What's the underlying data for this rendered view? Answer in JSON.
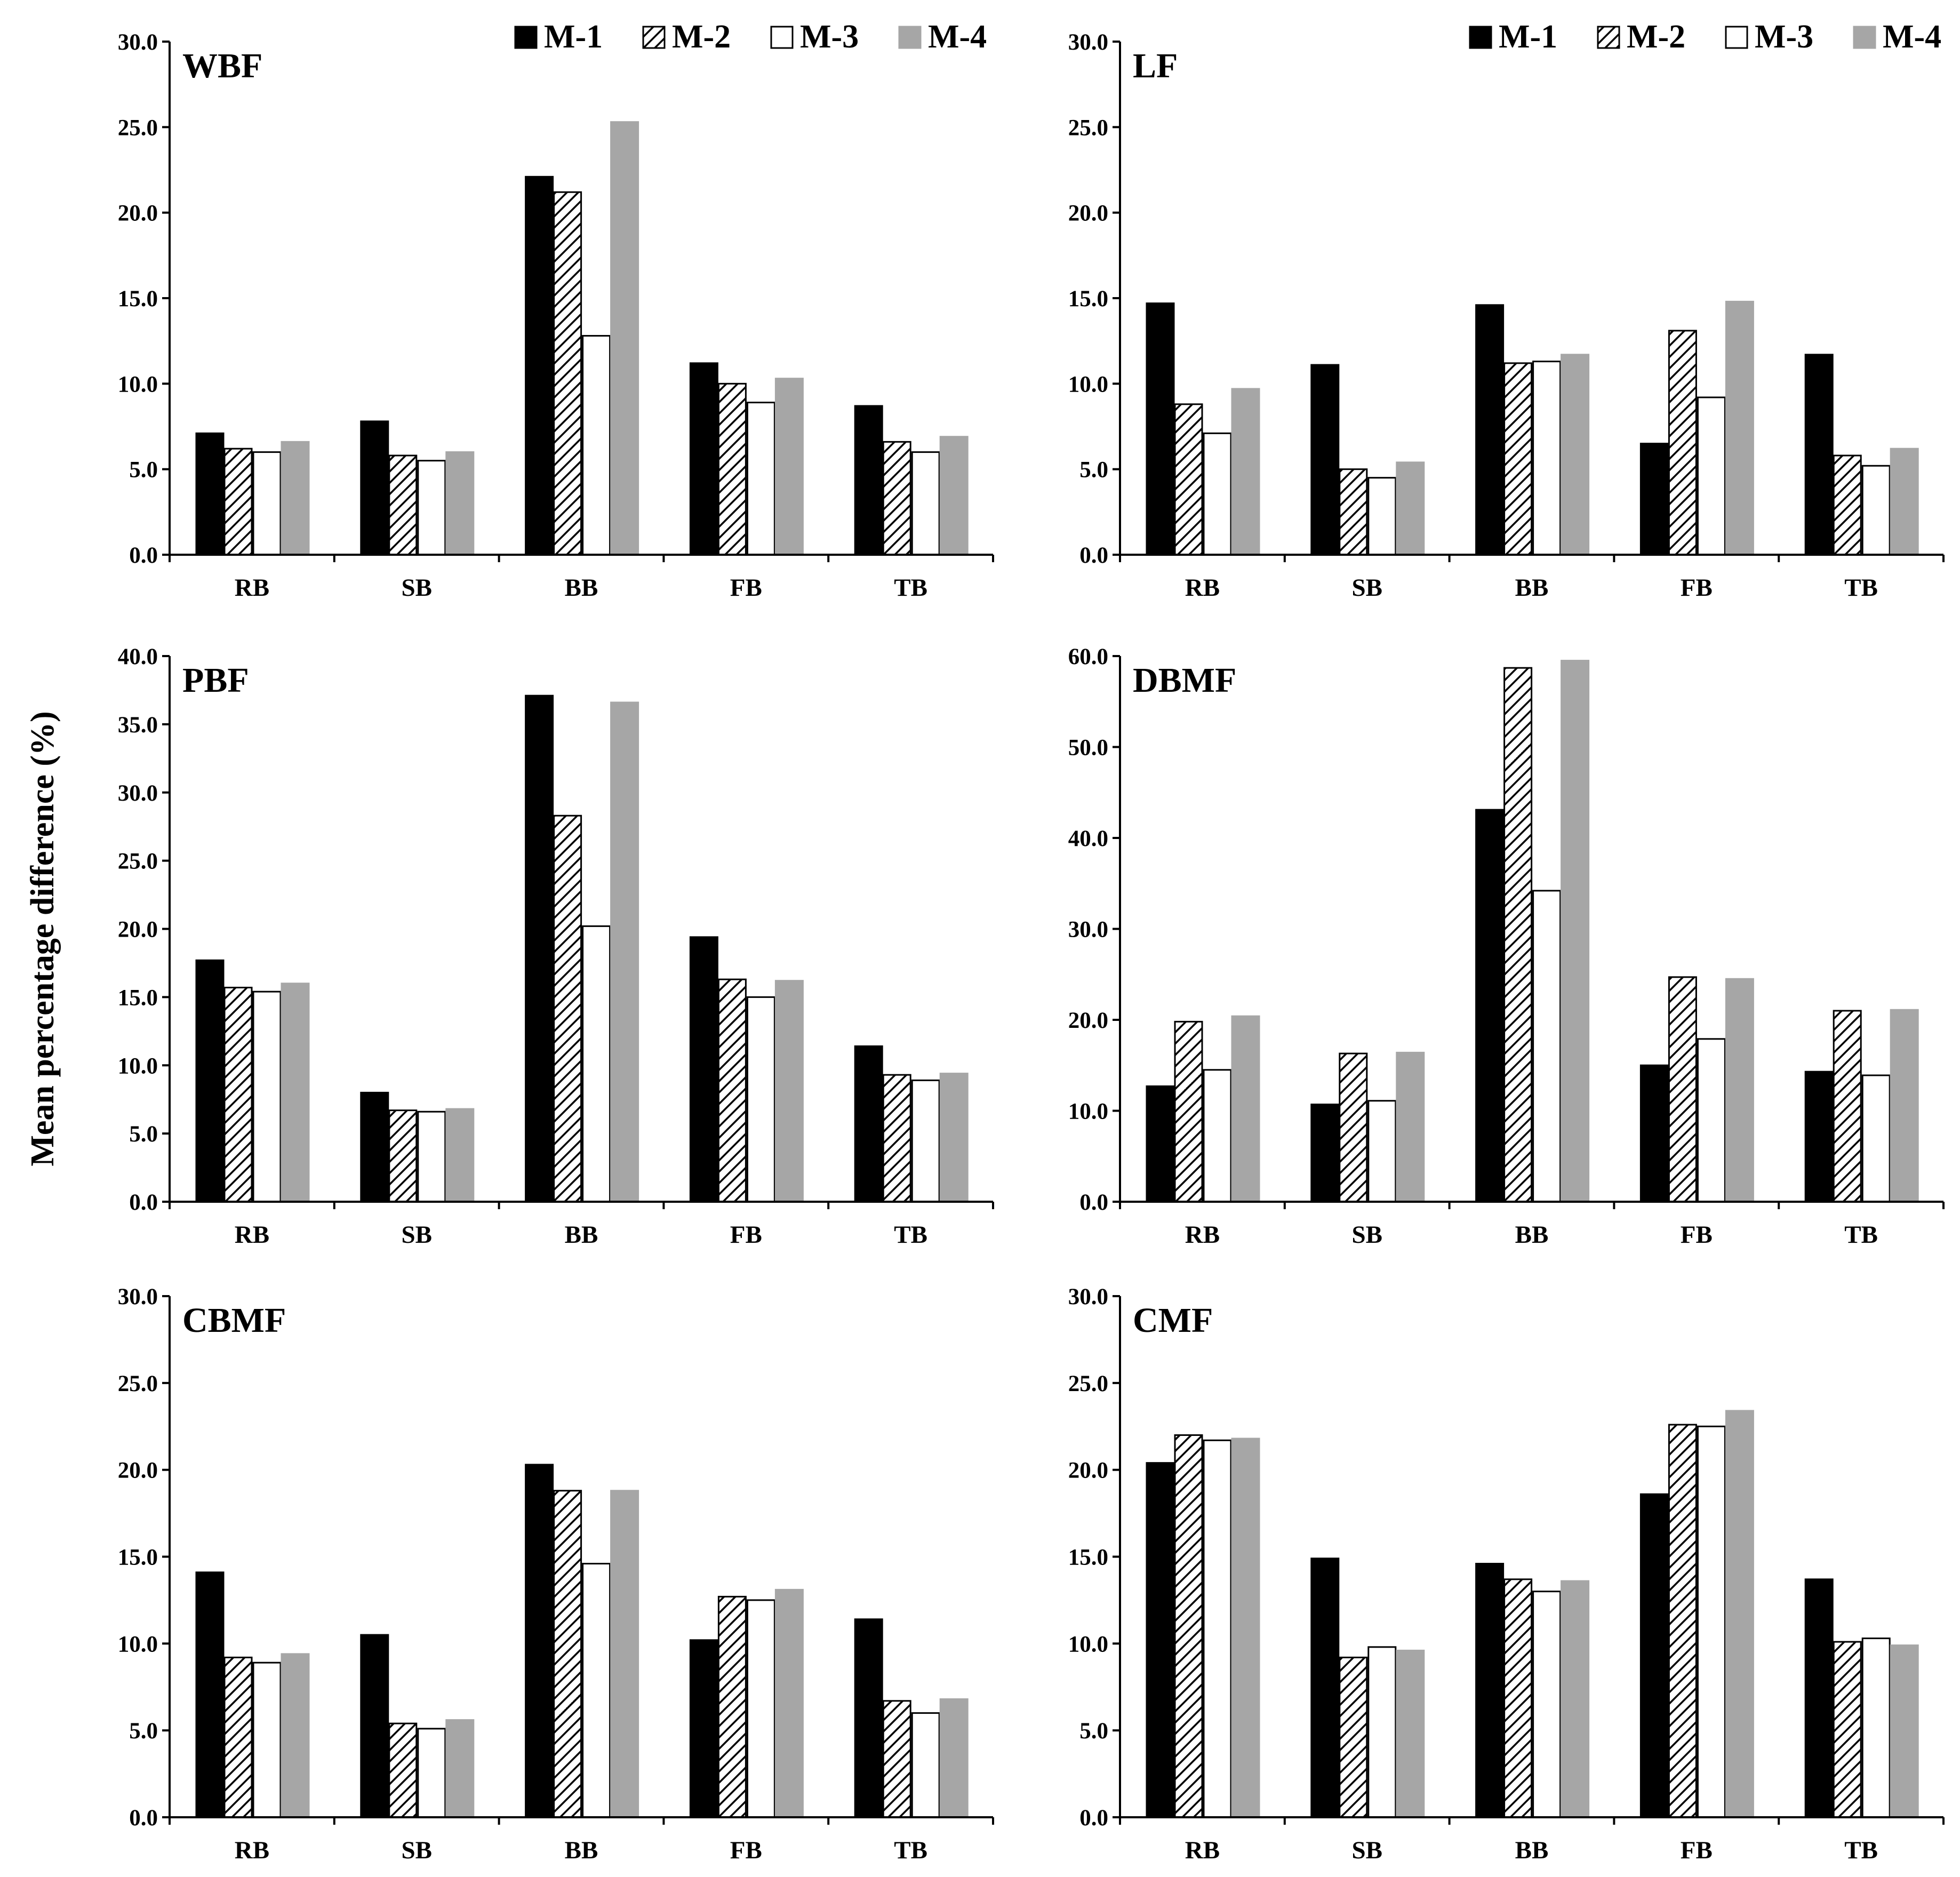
{
  "figure": {
    "ylabel": "Mean percentage difference (%)"
  },
  "colors": {
    "M-1": "#000000",
    "M-2": "#ffffff",
    "M-2_hatch": "#000000",
    "M-3": "#ffffff",
    "M-4": "#a6a6a6"
  },
  "chart_data": [
    {
      "type": "bar",
      "title": "WBF",
      "categories": [
        "RB",
        "SB",
        "BB",
        "FB",
        "TB"
      ],
      "ylim": [
        0,
        30
      ],
      "ytick_step": 5,
      "ytick_labels": [
        "0.0",
        "5.0",
        "10.0",
        "15.0",
        "20.0",
        "25.0",
        "30.0"
      ],
      "legend": [
        "M-1",
        "M-2",
        "M-3",
        "M-4"
      ],
      "legend_position": "top-right",
      "series": [
        {
          "name": "M-1",
          "values": [
            7.1,
            7.8,
            22.1,
            11.2,
            8.7
          ]
        },
        {
          "name": "M-2",
          "values": [
            6.2,
            5.8,
            21.2,
            10.0,
            6.6
          ]
        },
        {
          "name": "M-3",
          "values": [
            6.0,
            5.5,
            12.8,
            8.9,
            6.0
          ]
        },
        {
          "name": "M-4",
          "values": [
            6.6,
            6.0,
            25.3,
            10.3,
            6.9
          ]
        }
      ]
    },
    {
      "type": "bar",
      "title": "LF",
      "categories": [
        "RB",
        "SB",
        "BB",
        "FB",
        "TB"
      ],
      "ylim": [
        0,
        30
      ],
      "ytick_step": 5,
      "ytick_labels": [
        "0.0",
        "5.0",
        "10.0",
        "15.0",
        "20.0",
        "25.0",
        "30.0"
      ],
      "legend": [
        "M-1",
        "M-2",
        "M-3",
        "M-4"
      ],
      "legend_position": "top-right",
      "series": [
        {
          "name": "M-1",
          "values": [
            14.7,
            11.1,
            14.6,
            6.5,
            11.7
          ]
        },
        {
          "name": "M-2",
          "values": [
            8.8,
            5.0,
            11.2,
            13.1,
            5.8
          ]
        },
        {
          "name": "M-3",
          "values": [
            7.1,
            4.5,
            11.3,
            9.2,
            5.2
          ]
        },
        {
          "name": "M-4",
          "values": [
            9.7,
            5.4,
            11.7,
            14.8,
            6.2
          ]
        }
      ]
    },
    {
      "type": "bar",
      "title": "PBF",
      "categories": [
        "RB",
        "SB",
        "BB",
        "FB",
        "TB"
      ],
      "ylim": [
        0,
        40
      ],
      "ytick_step": 5,
      "ytick_labels": [
        "0.0",
        "5.0",
        "10.0",
        "15.0",
        "20.0",
        "25.0",
        "30.0",
        "35.0",
        "40.0"
      ],
      "series": [
        {
          "name": "M-1",
          "values": [
            17.7,
            8.0,
            37.1,
            19.4,
            11.4
          ]
        },
        {
          "name": "M-2",
          "values": [
            15.7,
            6.7,
            28.3,
            16.3,
            9.3
          ]
        },
        {
          "name": "M-3",
          "values": [
            15.4,
            6.6,
            20.2,
            15.0,
            8.9
          ]
        },
        {
          "name": "M-4",
          "values": [
            16.0,
            6.8,
            36.6,
            16.2,
            9.4
          ]
        }
      ]
    },
    {
      "type": "bar",
      "title": "DBMF",
      "categories": [
        "RB",
        "SB",
        "BB",
        "FB",
        "TB"
      ],
      "ylim": [
        0,
        60
      ],
      "ytick_step": 10,
      "ytick_labels": [
        "0.0",
        "10.0",
        "20.0",
        "30.0",
        "40.0",
        "50.0",
        "60.0"
      ],
      "series": [
        {
          "name": "M-1",
          "values": [
            12.7,
            10.7,
            43.1,
            15.0,
            14.3
          ]
        },
        {
          "name": "M-2",
          "values": [
            19.8,
            16.3,
            58.7,
            24.7,
            21.0
          ]
        },
        {
          "name": "M-3",
          "values": [
            14.5,
            11.1,
            34.2,
            17.9,
            13.9
          ]
        },
        {
          "name": "M-4",
          "values": [
            20.4,
            16.4,
            59.5,
            24.5,
            21.1
          ]
        }
      ]
    },
    {
      "type": "bar",
      "title": "CBMF",
      "categories": [
        "RB",
        "SB",
        "BB",
        "FB",
        "TB"
      ],
      "ylim": [
        0,
        30
      ],
      "ytick_step": 5,
      "ytick_labels": [
        "0.0",
        "5.0",
        "10.0",
        "15.0",
        "20.0",
        "25.0",
        "30.0"
      ],
      "series": [
        {
          "name": "M-1",
          "values": [
            14.1,
            10.5,
            20.3,
            10.2,
            11.4
          ]
        },
        {
          "name": "M-2",
          "values": [
            9.2,
            5.4,
            18.8,
            12.7,
            6.7
          ]
        },
        {
          "name": "M-3",
          "values": [
            8.9,
            5.1,
            14.6,
            12.5,
            6.0
          ]
        },
        {
          "name": "M-4",
          "values": [
            9.4,
            5.6,
            18.8,
            13.1,
            6.8
          ]
        }
      ]
    },
    {
      "type": "bar",
      "title": "CMF",
      "categories": [
        "RB",
        "SB",
        "BB",
        "FB",
        "TB"
      ],
      "ylim": [
        0,
        30
      ],
      "ytick_step": 5,
      "ytick_labels": [
        "0.0",
        "5.0",
        "10.0",
        "15.0",
        "20.0",
        "25.0",
        "30.0"
      ],
      "series": [
        {
          "name": "M-1",
          "values": [
            20.4,
            14.9,
            14.6,
            18.6,
            13.7
          ]
        },
        {
          "name": "M-2",
          "values": [
            22.0,
            9.2,
            13.7,
            22.6,
            10.1
          ]
        },
        {
          "name": "M-3",
          "values": [
            21.7,
            9.8,
            13.0,
            22.5,
            10.3
          ]
        },
        {
          "name": "M-4",
          "values": [
            21.8,
            9.6,
            13.6,
            23.4,
            9.9
          ]
        }
      ]
    }
  ]
}
